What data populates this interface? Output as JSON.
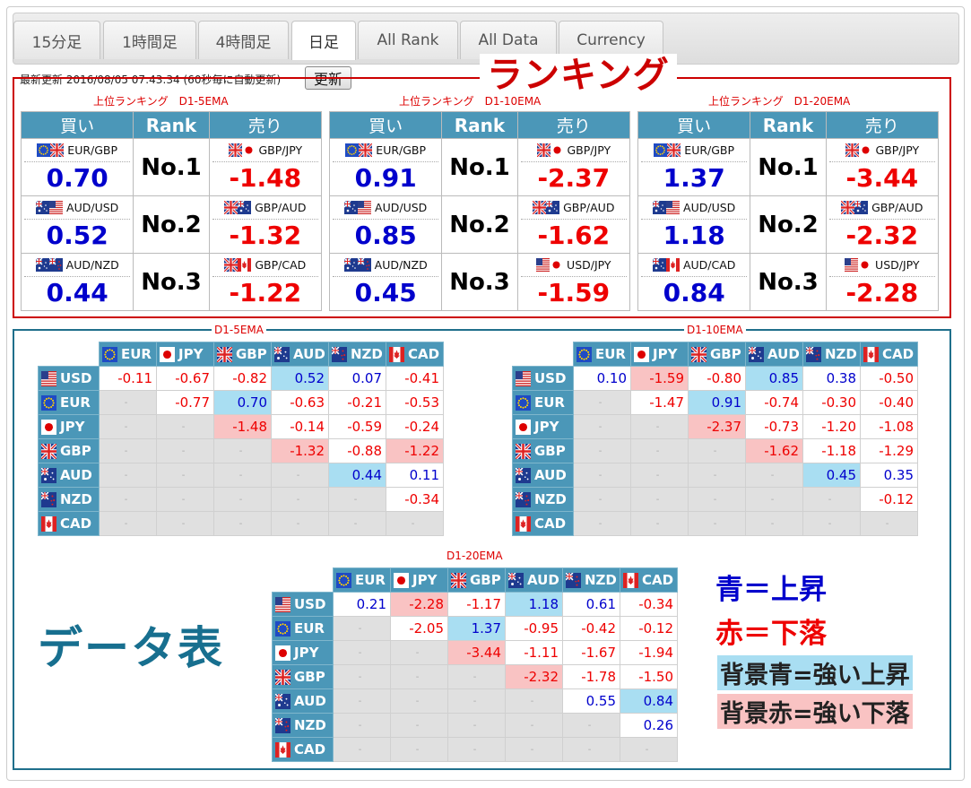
{
  "tabs": [
    {
      "label": "15分足"
    },
    {
      "label": "1時間足"
    },
    {
      "label": "4時間足"
    },
    {
      "label": "日足"
    },
    {
      "label": "All Rank"
    },
    {
      "label": "All Data"
    },
    {
      "label": "Currency"
    }
  ],
  "update": {
    "text": "最新更新 2016/08/05 07:43:34 (60秒毎に自動更新)",
    "button": "更新"
  },
  "ranking": {
    "title": "ランキング",
    "headers": {
      "buy": "買い",
      "rank": "Rank",
      "sell": "売り"
    },
    "rank_labels": [
      "No.1",
      "No.2",
      "No.3"
    ],
    "tables": [
      {
        "caption": "上位ランキング　D1-5EMA",
        "rows": [
          {
            "buy": {
              "pair": "EUR/GBP",
              "value": "0.70",
              "flag": "eu-gb"
            },
            "sell": {
              "pair": "GBP/JPY",
              "value": "-1.48",
              "flag": "gb-jp"
            }
          },
          {
            "buy": {
              "pair": "AUD/USD",
              "value": "0.52",
              "flag": "au-us"
            },
            "sell": {
              "pair": "GBP/AUD",
              "value": "-1.32",
              "flag": "gb-au"
            }
          },
          {
            "buy": {
              "pair": "AUD/NZD",
              "value": "0.44",
              "flag": "au-nz"
            },
            "sell": {
              "pair": "GBP/CAD",
              "value": "-1.22",
              "flag": "gb-ca"
            }
          }
        ]
      },
      {
        "caption": "上位ランキング　D1-10EMA",
        "rows": [
          {
            "buy": {
              "pair": "EUR/GBP",
              "value": "0.91",
              "flag": "eu-gb"
            },
            "sell": {
              "pair": "GBP/JPY",
              "value": "-2.37",
              "flag": "gb-jp"
            }
          },
          {
            "buy": {
              "pair": "AUD/USD",
              "value": "0.85",
              "flag": "au-us"
            },
            "sell": {
              "pair": "GBP/AUD",
              "value": "-1.62",
              "flag": "gb-au"
            }
          },
          {
            "buy": {
              "pair": "AUD/NZD",
              "value": "0.45",
              "flag": "au-nz"
            },
            "sell": {
              "pair": "USD/JPY",
              "value": "-1.59",
              "flag": "us-jp"
            }
          }
        ]
      },
      {
        "caption": "上位ランキング　D1-20EMA",
        "rows": [
          {
            "buy": {
              "pair": "EUR/GBP",
              "value": "1.37",
              "flag": "eu-gb"
            },
            "sell": {
              "pair": "GBP/JPY",
              "value": "-3.44",
              "flag": "gb-jp"
            }
          },
          {
            "buy": {
              "pair": "AUD/USD",
              "value": "1.18",
              "flag": "au-us"
            },
            "sell": {
              "pair": "GBP/AUD",
              "value": "-2.32",
              "flag": "gb-au"
            }
          },
          {
            "buy": {
              "pair": "AUD/CAD",
              "value": "0.84",
              "flag": "au-ca"
            },
            "sell": {
              "pair": "USD/JPY",
              "value": "-2.28",
              "flag": "us-jp"
            }
          }
        ]
      }
    ]
  },
  "currencies": [
    "EUR",
    "JPY",
    "GBP",
    "AUD",
    "NZD",
    "CAD"
  ],
  "row_currencies": [
    "USD",
    "EUR",
    "JPY",
    "GBP",
    "AUD",
    "NZD",
    "CAD"
  ],
  "matrices": [
    {
      "caption": "D1-5EMA",
      "rows": [
        [
          {
            "v": "-0.11"
          },
          {
            "v": "-0.67"
          },
          {
            "v": "-0.82"
          },
          {
            "v": "0.52",
            "bg": "b"
          },
          {
            "v": "0.07"
          },
          {
            "v": "-0.41"
          }
        ],
        [
          {
            "v": "-"
          },
          {
            "v": "-0.77"
          },
          {
            "v": "0.70",
            "bg": "b"
          },
          {
            "v": "-0.63"
          },
          {
            "v": "-0.21"
          },
          {
            "v": "-0.53"
          }
        ],
        [
          {
            "v": "-"
          },
          {
            "v": "-"
          },
          {
            "v": "-1.48",
            "bg": "r"
          },
          {
            "v": "-0.14"
          },
          {
            "v": "-0.59"
          },
          {
            "v": "-0.24"
          }
        ],
        [
          {
            "v": "-"
          },
          {
            "v": "-"
          },
          {
            "v": "-"
          },
          {
            "v": "-1.32",
            "bg": "r"
          },
          {
            "v": "-0.88"
          },
          {
            "v": "-1.22",
            "bg": "r"
          }
        ],
        [
          {
            "v": "-"
          },
          {
            "v": "-"
          },
          {
            "v": "-"
          },
          {
            "v": "-"
          },
          {
            "v": "0.44",
            "bg": "b"
          },
          {
            "v": "0.11"
          }
        ],
        [
          {
            "v": "-"
          },
          {
            "v": "-"
          },
          {
            "v": "-"
          },
          {
            "v": "-"
          },
          {
            "v": "-"
          },
          {
            "v": "-0.34"
          }
        ],
        [
          {
            "v": "-"
          },
          {
            "v": "-"
          },
          {
            "v": "-"
          },
          {
            "v": "-"
          },
          {
            "v": "-"
          },
          {
            "v": "-"
          }
        ]
      ]
    },
    {
      "caption": "D1-10EMA",
      "rows": [
        [
          {
            "v": "0.10"
          },
          {
            "v": "-1.59",
            "bg": "r"
          },
          {
            "v": "-0.80"
          },
          {
            "v": "0.85",
            "bg": "b"
          },
          {
            "v": "0.38"
          },
          {
            "v": "-0.50"
          }
        ],
        [
          {
            "v": "-"
          },
          {
            "v": "-1.47"
          },
          {
            "v": "0.91",
            "bg": "b"
          },
          {
            "v": "-0.74"
          },
          {
            "v": "-0.30"
          },
          {
            "v": "-0.40"
          }
        ],
        [
          {
            "v": "-"
          },
          {
            "v": "-"
          },
          {
            "v": "-2.37",
            "bg": "r"
          },
          {
            "v": "-0.73"
          },
          {
            "v": "-1.20"
          },
          {
            "v": "-1.08"
          }
        ],
        [
          {
            "v": "-"
          },
          {
            "v": "-"
          },
          {
            "v": "-"
          },
          {
            "v": "-1.62",
            "bg": "r"
          },
          {
            "v": "-1.18"
          },
          {
            "v": "-1.29"
          }
        ],
        [
          {
            "v": "-"
          },
          {
            "v": "-"
          },
          {
            "v": "-"
          },
          {
            "v": "-"
          },
          {
            "v": "0.45",
            "bg": "b"
          },
          {
            "v": "0.35"
          }
        ],
        [
          {
            "v": "-"
          },
          {
            "v": "-"
          },
          {
            "v": "-"
          },
          {
            "v": "-"
          },
          {
            "v": "-"
          },
          {
            "v": "-0.12"
          }
        ],
        [
          {
            "v": "-"
          },
          {
            "v": "-"
          },
          {
            "v": "-"
          },
          {
            "v": "-"
          },
          {
            "v": "-"
          },
          {
            "v": "-"
          }
        ]
      ]
    },
    {
      "caption": "D1-20EMA",
      "rows": [
        [
          {
            "v": "0.21"
          },
          {
            "v": "-2.28",
            "bg": "r"
          },
          {
            "v": "-1.17"
          },
          {
            "v": "1.18",
            "bg": "b"
          },
          {
            "v": "0.61"
          },
          {
            "v": "-0.34"
          }
        ],
        [
          {
            "v": "-"
          },
          {
            "v": "-2.05"
          },
          {
            "v": "1.37",
            "bg": "b"
          },
          {
            "v": "-0.95"
          },
          {
            "v": "-0.42"
          },
          {
            "v": "-0.12"
          }
        ],
        [
          {
            "v": "-"
          },
          {
            "v": "-"
          },
          {
            "v": "-3.44",
            "bg": "r"
          },
          {
            "v": "-1.11"
          },
          {
            "v": "-1.67"
          },
          {
            "v": "-1.94"
          }
        ],
        [
          {
            "v": "-"
          },
          {
            "v": "-"
          },
          {
            "v": "-"
          },
          {
            "v": "-2.32",
            "bg": "r"
          },
          {
            "v": "-1.78"
          },
          {
            "v": "-1.50"
          }
        ],
        [
          {
            "v": "-"
          },
          {
            "v": "-"
          },
          {
            "v": "-"
          },
          {
            "v": "-"
          },
          {
            "v": "0.55"
          },
          {
            "v": "0.84",
            "bg": "b"
          }
        ],
        [
          {
            "v": "-"
          },
          {
            "v": "-"
          },
          {
            "v": "-"
          },
          {
            "v": "-"
          },
          {
            "v": "-"
          },
          {
            "v": "0.26"
          }
        ],
        [
          {
            "v": "-"
          },
          {
            "v": "-"
          },
          {
            "v": "-"
          },
          {
            "v": "-"
          },
          {
            "v": "-"
          },
          {
            "v": "-"
          }
        ]
      ]
    }
  ],
  "data_title": "データ表",
  "legend": {
    "blue": "青＝上昇",
    "red": "赤＝下落",
    "bg_blue": "背景青=強い上昇",
    "bg_red": "背景赤=強い下落"
  },
  "colors": {
    "accent": "#4b97b8",
    "up": "#0000cc",
    "down": "#ee0000",
    "bg_up": "#a9def2",
    "bg_down": "#f9c3c3",
    "ranking_border": "#cc0000",
    "data_border": "#1f6f8b"
  }
}
